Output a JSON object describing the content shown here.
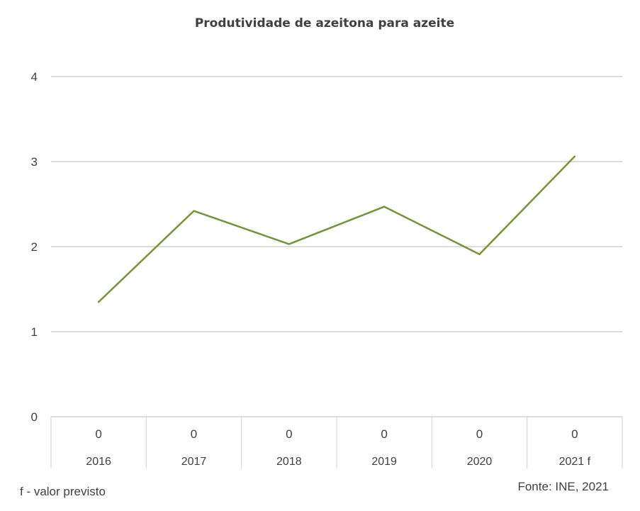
{
  "chart_data": {
    "type": "line",
    "title": "Produtividade de azeitona para azeite",
    "categories": [
      "2016",
      "2017",
      "2018",
      "2019",
      "2020",
      "2021 f"
    ],
    "table_values": [
      "0",
      "0",
      "0",
      "0",
      "0",
      "0"
    ],
    "series": [
      {
        "values": [
          1.35,
          2.42,
          2.03,
          2.47,
          1.91,
          3.06
        ],
        "color": "#76923c"
      }
    ],
    "y_ticks": [
      "0",
      "1",
      "2",
      "3",
      "4"
    ],
    "ylim": [
      0,
      4
    ],
    "grid": true
  },
  "footnote": "f - valor previsto",
  "source": "Fonte: INE, 2021"
}
